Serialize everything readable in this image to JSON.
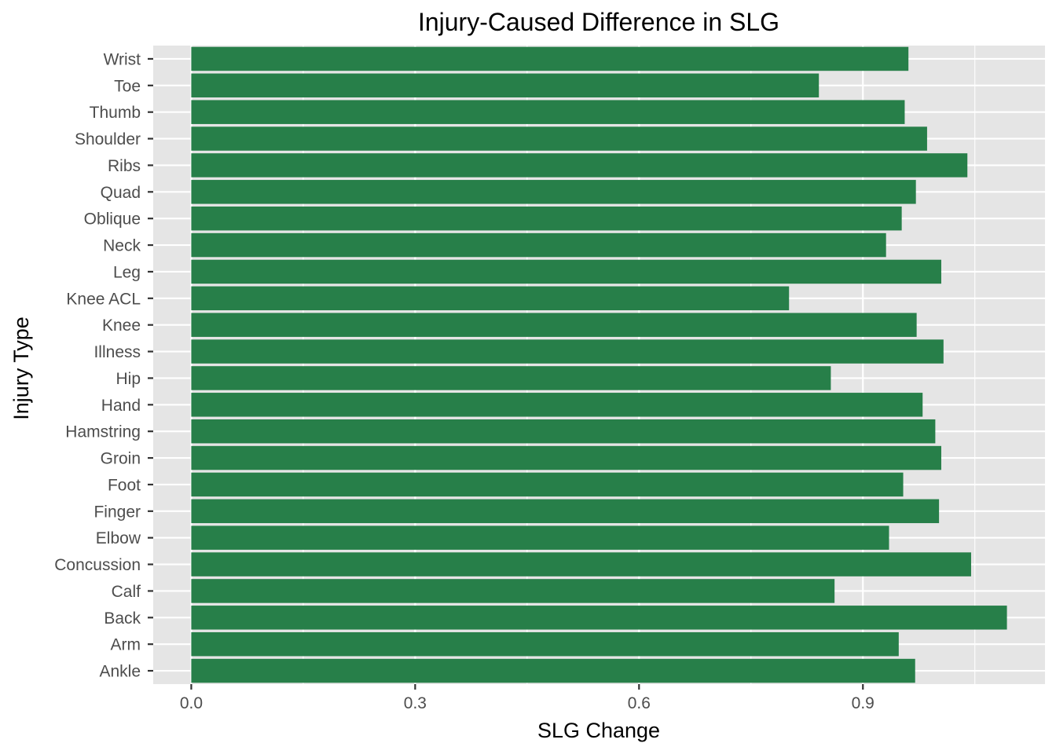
{
  "chart_data": {
    "type": "bar",
    "orientation": "horizontal",
    "title": "Injury-Caused Difference in SLG",
    "xlabel": "SLG Change",
    "ylabel": "Injury Type",
    "categories": [
      "Ankle",
      "Arm",
      "Back",
      "Calf",
      "Concussion",
      "Elbow",
      "Finger",
      "Foot",
      "Groin",
      "Hamstring",
      "Hand",
      "Hip",
      "Illness",
      "Knee",
      "Knee ACL",
      "Leg",
      "Neck",
      "Oblique",
      "Quad",
      "Ribs",
      "Shoulder",
      "Thumb",
      "Toe",
      "Wrist"
    ],
    "values": [
      0.97,
      0.948,
      1.093,
      0.862,
      1.045,
      0.935,
      1.002,
      0.954,
      1.005,
      0.997,
      0.98,
      0.857,
      1.008,
      0.972,
      0.801,
      1.005,
      0.931,
      0.952,
      0.971,
      1.04,
      0.986,
      0.956,
      0.841,
      0.961
    ],
    "xlim": [
      -0.051,
      1.144
    ],
    "xticks": [
      0.0,
      0.3,
      0.6,
      0.9
    ],
    "xtick_labels": [
      "0.0",
      "0.3",
      "0.6",
      "0.9"
    ],
    "bar_color": "#277f49",
    "panel_background": "#e5e5e5",
    "grid_color": "#ffffff",
    "grid": true,
    "legend": "none"
  }
}
